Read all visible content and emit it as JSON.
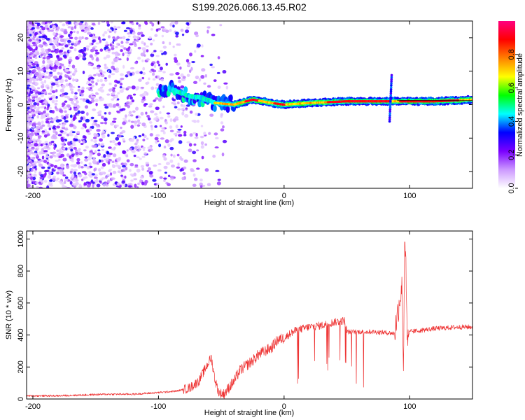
{
  "title": "S199.2026.066.13.45.R02",
  "chart_data": [
    {
      "type": "heatmap",
      "title": "S199.2026.066.13.45.R02",
      "xlabel": "Height of straight line (km)",
      "ylabel": "Frequency (Hz)",
      "xlim": [
        -205,
        150
      ],
      "ylim": [
        -25,
        25
      ],
      "xticks": [
        -200,
        -100,
        0,
        100
      ],
      "yticks": [
        -20,
        -10,
        0,
        10,
        20
      ],
      "colorbar": {
        "label": "Normalized spectral amplitude",
        "range": [
          0,
          1
        ],
        "ticks": [
          "0.0",
          "0.2",
          "0.4",
          "0.6",
          "0.8"
        ],
        "colormap": [
          "#ffffff",
          "#cc99ff",
          "#7a00ff",
          "#0000ff",
          "#00ffff",
          "#00ff00",
          "#ffff00",
          "#ff8000",
          "#ff0000",
          "#ff0080"
        ]
      },
      "ridge": [
        {
          "x": -95,
          "f": 5.0
        },
        {
          "x": -85,
          "f": 4.0
        },
        {
          "x": -75,
          "f": 2.5
        },
        {
          "x": -65,
          "f": 2.0
        },
        {
          "x": -55,
          "f": 0.5
        },
        {
          "x": -40,
          "f": 0.0
        },
        {
          "x": -25,
          "f": 1.5
        },
        {
          "x": -10,
          "f": 0.5
        },
        {
          "x": 0,
          "f": 0.0
        },
        {
          "x": 20,
          "f": 0.5
        },
        {
          "x": 50,
          "f": 1.0
        },
        {
          "x": 85,
          "f": 1.0
        },
        {
          "x": 90,
          "f": 1.0
        },
        {
          "x": 120,
          "f": 1.0
        },
        {
          "x": 150,
          "f": 1.5
        }
      ]
    },
    {
      "type": "line",
      "xlabel": "Height of straight line (km)",
      "ylabel": "SNR (10 * v/v)",
      "xlim": [
        -205,
        150
      ],
      "ylim": [
        0,
        1050
      ],
      "xticks": [
        -200,
        -100,
        0,
        100
      ],
      "yticks": [
        0,
        200,
        400,
        600,
        800,
        1000
      ],
      "color": "#ee3333",
      "series": [
        {
          "name": "SNR",
          "x": [
            -205,
            -180,
            -160,
            -140,
            -120,
            -100,
            -85,
            -75,
            -68,
            -62,
            -58,
            -55,
            -52,
            -48,
            -45,
            -40,
            -35,
            -30,
            -25,
            -20,
            -15,
            -10,
            -5,
            0,
            5,
            10,
            20,
            30,
            40,
            48,
            50,
            60,
            70,
            80,
            88,
            92,
            94,
            95,
            96,
            97,
            98,
            100,
            110,
            120,
            130,
            140,
            150
          ],
          "y": [
            20,
            20,
            25,
            30,
            30,
            40,
            50,
            70,
            110,
            200,
            260,
            120,
            40,
            30,
            60,
            110,
            180,
            210,
            240,
            280,
            300,
            320,
            370,
            380,
            410,
            430,
            450,
            460,
            480,
            490,
            420,
            420,
            420,
            415,
            410,
            620,
            700,
            160,
            1050,
            800,
            350,
            420,
            430,
            440,
            445,
            450,
            450
          ]
        }
      ]
    }
  ]
}
